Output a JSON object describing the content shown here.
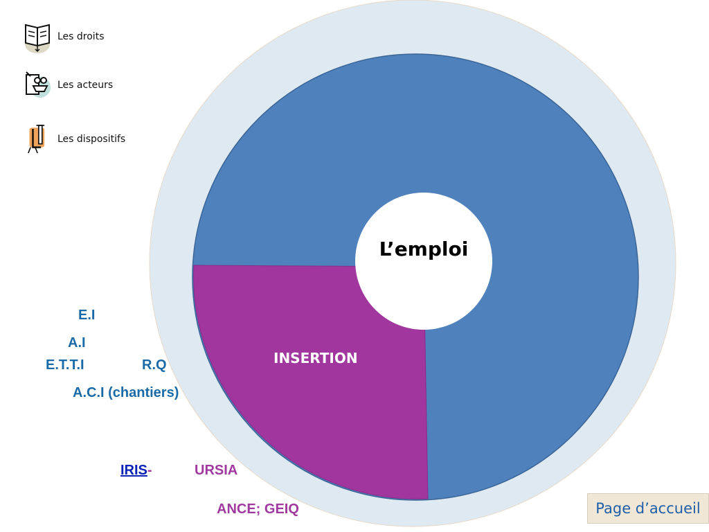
{
  "nav": {
    "items": [
      {
        "label": "Les droits",
        "icon": "book-icon"
      },
      {
        "label": "Les acteurs",
        "icon": "people-board-icon"
      },
      {
        "label": "Les dispositifs",
        "icon": "clamp-icon"
      }
    ]
  },
  "diagram": {
    "center_label": "L’emploi",
    "segment_label": "INSERTION",
    "colors": {
      "outer_ring": "#dfe9f1",
      "main_circle": "#4f81bd",
      "insertion_segment": "#a1369f",
      "center": "#ffffff"
    }
  },
  "dispositifs": {
    "ei": "E.I",
    "ai": "A.I",
    "etti": "E.T.T.I",
    "rq": "R.Q",
    "aci": "A.C.I (chantiers)"
  },
  "partners": {
    "iris": "IRIS",
    "iris_sep": "-",
    "ursia": "URSIA",
    "ance": "ANCE; GEIQ"
  },
  "home_button": {
    "label": "Page d’accueil"
  }
}
